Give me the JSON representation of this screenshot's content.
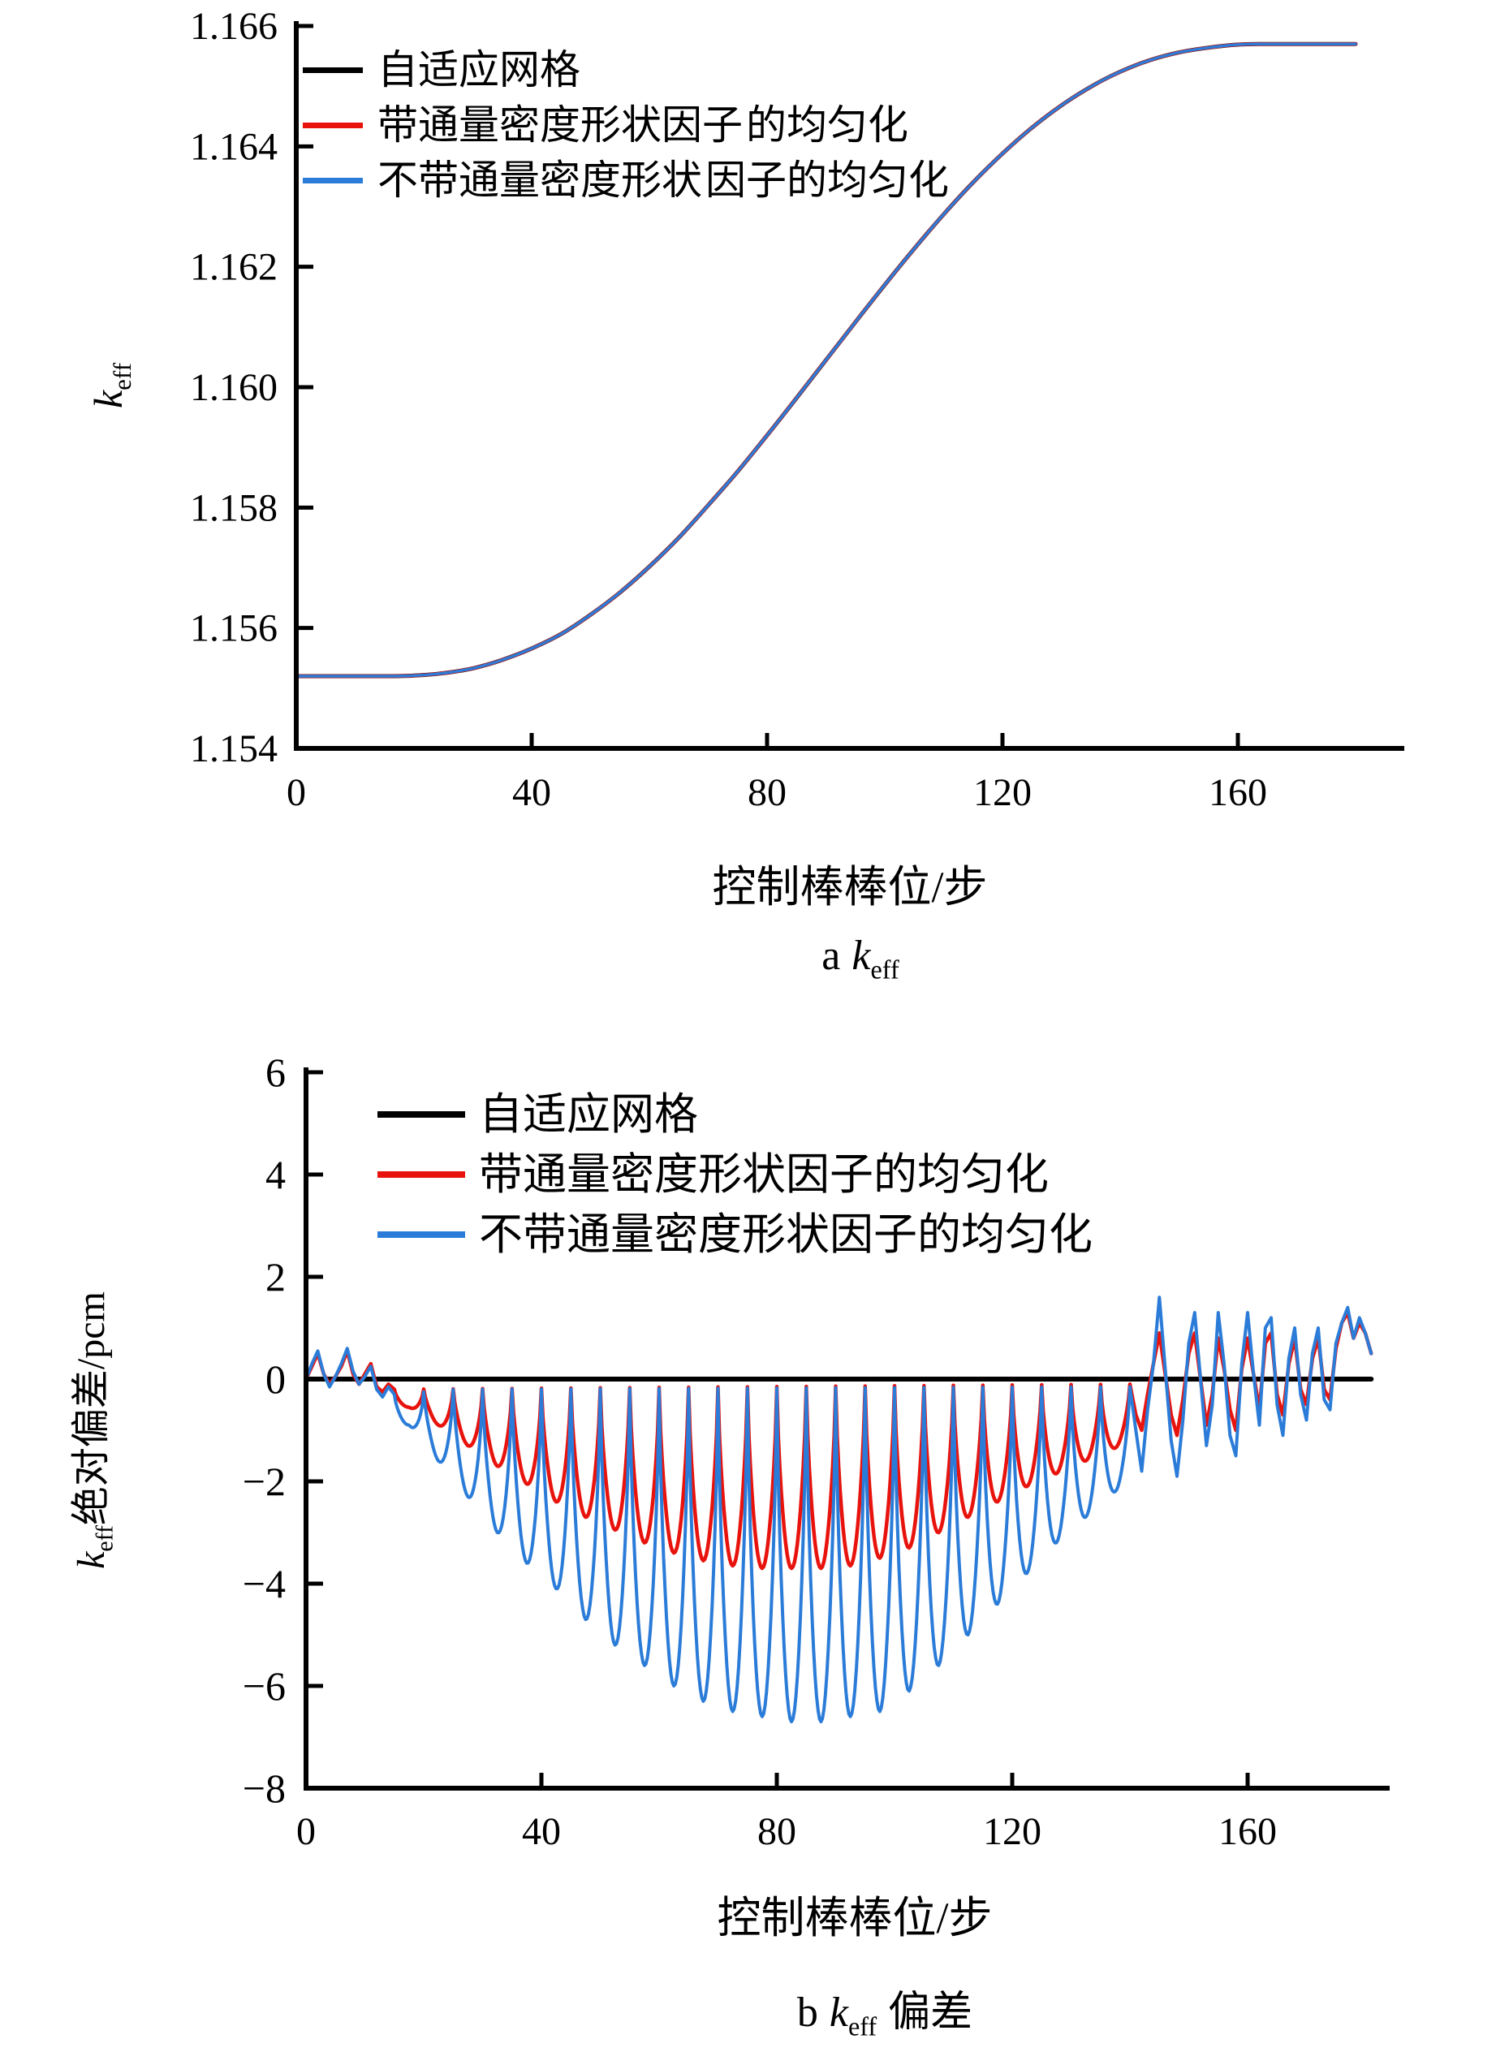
{
  "figure": {
    "background": "#ffffff",
    "colors": {
      "adaptive_mesh": "#000000",
      "with_form_factor": "#e8130d",
      "without_form_factor": "#2b7cd8"
    },
    "panel_a": {
      "ylabel_main": "k",
      "ylabel_sub": "eff",
      "xlabel": "控制棒棒位/步",
      "caption_prefix": "a",
      "caption_main": "k",
      "caption_sub": "eff",
      "legend": [
        {
          "line1": "自适应网格",
          "line2": "",
          "color": "#000000"
        },
        {
          "line1": "带通量密度形状因子",
          "line2": "的均匀化",
          "color": "#e8130d"
        },
        {
          "line1": "不带通量密度形状",
          "line2": "因子的均匀化",
          "color": "#2b7cd8"
        }
      ]
    },
    "panel_b": {
      "ylabel_main": "k",
      "ylabel_sub": "eff",
      "ylabel_rest": "绝对偏差/pcm",
      "xlabel": "控制棒棒位/步",
      "caption_prefix": "b",
      "caption_main": "k",
      "caption_sub": "eff",
      "caption_suffix": "偏差",
      "legend": [
        {
          "line1": "自适应网格",
          "color": "#000000"
        },
        {
          "line1": "带通量密度形状因子的均匀化",
          "color": "#e8130d"
        },
        {
          "line1": "不带通量密度形状因子的均匀化",
          "color": "#2b7cd8"
        }
      ]
    }
  },
  "chart_data": [
    {
      "id": "a",
      "type": "line",
      "title": "a k_eff",
      "xlabel": "控制棒棒位/步",
      "ylabel": "k_eff",
      "xlim": [
        0,
        188
      ],
      "ylim": [
        1.154,
        1.166
      ],
      "grid": false,
      "legend_position": "upper-left",
      "xtick_values": [
        0,
        40,
        80,
        120,
        160
      ],
      "xtick_labels": [
        "0",
        "40",
        "80",
        "120",
        "160"
      ],
      "ytick_values": [
        1.154,
        1.156,
        1.158,
        1.16,
        1.162,
        1.164,
        1.166
      ],
      "ytick_labels": [
        "1.154",
        "1.156",
        "1.158",
        "1.160",
        "1.162",
        "1.164",
        "1.166"
      ],
      "x": [
        0,
        5,
        10,
        15,
        20,
        25,
        30,
        35,
        40,
        45,
        50,
        55,
        60,
        65,
        70,
        75,
        80,
        85,
        90,
        95,
        100,
        105,
        110,
        115,
        120,
        125,
        130,
        135,
        140,
        145,
        150,
        155,
        160,
        165,
        170,
        175,
        180
      ],
      "shared_y": [
        1.1552,
        1.1552,
        1.1552,
        1.1552,
        1.15521,
        1.15525,
        1.15533,
        1.15547,
        1.15566,
        1.1559,
        1.15622,
        1.15659,
        1.15702,
        1.1575,
        1.15804,
        1.1586,
        1.1592,
        1.15982,
        1.16045,
        1.16108,
        1.1617,
        1.1623,
        1.16287,
        1.1634,
        1.16388,
        1.16431,
        1.16468,
        1.16499,
        1.16524,
        1.16543,
        1.16556,
        1.16564,
        1.16569,
        1.1657,
        1.1657,
        1.1657,
        1.1657
      ],
      "series": [
        {
          "name": "自适应网格",
          "color": "#000000",
          "width": 5,
          "uses_shared_y": true
        },
        {
          "name": "带通量密度形状因子的均匀化",
          "color": "#e8130d",
          "width": 4.5,
          "uses_shared_y": true
        },
        {
          "name": "不带通量密度形状因子的均匀化",
          "color": "#2b7cd8",
          "width": 3.5,
          "uses_shared_y": true
        }
      ]
    },
    {
      "id": "b",
      "type": "line",
      "title": "b k_eff 偏差",
      "xlabel": "控制棒棒位/步",
      "ylabel": "k_eff绝对偏差/pcm",
      "xlim": [
        0,
        188
      ],
      "ylim": [
        -8,
        6
      ],
      "grid": false,
      "legend_position": "upper-left",
      "xtick_values": [
        0,
        40,
        80,
        120,
        160
      ],
      "xtick_labels": [
        "0",
        "40",
        "80",
        "120",
        "160"
      ],
      "ytick_values": [
        6,
        4,
        2,
        0,
        -2,
        -4,
        -6,
        -8
      ],
      "ytick_labels": [
        "6",
        "4",
        "2",
        "0",
        "−2",
        "−4",
        "−6",
        "−8"
      ],
      "series": [
        {
          "name": "自适应网格",
          "color": "#000000",
          "width": 6,
          "points": [
            [
              0,
              0
            ],
            [
              181,
              0
            ]
          ]
        },
        {
          "name": "带通量密度形状因子的均匀化",
          "color": "#e8130d",
          "width": 4.5,
          "early": [
            [
              0,
              0
            ],
            [
              1,
              0.25
            ],
            [
              2,
              0.5
            ],
            [
              3,
              0.1
            ],
            [
              4,
              -0.1
            ],
            [
              5,
              0.05
            ],
            [
              6,
              0.25
            ],
            [
              7,
              0.55
            ],
            [
              8,
              0.1
            ],
            [
              9,
              -0.1
            ],
            [
              10,
              0.1
            ],
            [
              11,
              0.3
            ],
            [
              12,
              -0.15
            ],
            [
              13,
              -0.25
            ],
            [
              14,
              -0.1
            ]
          ],
          "periodic": {
            "start": 15,
            "end": 140,
            "period": 5,
            "sharpness": 0.7,
            "tops": [
              [
                15,
                -0.2
              ],
              [
                140,
                -0.1
              ]
            ],
            "mins": [
              [
                17.5,
                -0.55
              ],
              [
                22.5,
                -0.9
              ],
              [
                27.5,
                -1.3
              ],
              [
                32.5,
                -1.7
              ],
              [
                37.5,
                -2.05
              ],
              [
                42.5,
                -2.4
              ],
              [
                47.5,
                -2.7
              ],
              [
                52.5,
                -2.95
              ],
              [
                57.5,
                -3.2
              ],
              [
                62.5,
                -3.4
              ],
              [
                67.5,
                -3.55
              ],
              [
                72.5,
                -3.65
              ],
              [
                77.5,
                -3.7
              ],
              [
                82.5,
                -3.7
              ],
              [
                87.5,
                -3.7
              ],
              [
                92.5,
                -3.65
              ],
              [
                97.5,
                -3.5
              ],
              [
                102.5,
                -3.3
              ],
              [
                107.5,
                -3.0
              ],
              [
                112.5,
                -2.7
              ],
              [
                117.5,
                -2.4
              ],
              [
                122.5,
                -2.1
              ],
              [
                127.5,
                -1.85
              ],
              [
                132.5,
                -1.6
              ],
              [
                137.5,
                -1.35
              ],
              [
                140,
                -1.2
              ]
            ]
          },
          "late": [
            [
              141,
              -0.7
            ],
            [
              142,
              -1.0
            ],
            [
              143,
              -0.3
            ],
            [
              144,
              0.3
            ],
            [
              145,
              0.9
            ],
            [
              146,
              0.1
            ],
            [
              147,
              -0.7
            ],
            [
              148,
              -1.1
            ],
            [
              149,
              -0.4
            ],
            [
              150,
              0.5
            ],
            [
              151,
              0.9
            ],
            [
              152,
              0.0
            ],
            [
              153,
              -0.9
            ],
            [
              154,
              -0.3
            ],
            [
              155,
              0.8
            ],
            [
              156,
              0.2
            ],
            [
              157,
              -0.6
            ],
            [
              158,
              -1.0
            ],
            [
              159,
              0.2
            ],
            [
              160,
              0.8
            ],
            [
              161,
              0.1
            ],
            [
              162,
              -0.6
            ],
            [
              163,
              0.7
            ],
            [
              164,
              0.9
            ],
            [
              165,
              -0.3
            ],
            [
              166,
              -0.7
            ],
            [
              167,
              0.3
            ],
            [
              168,
              0.8
            ],
            [
              169,
              -0.2
            ],
            [
              170,
              -0.5
            ],
            [
              171,
              0.4
            ],
            [
              172,
              0.8
            ],
            [
              173,
              -0.2
            ],
            [
              174,
              -0.4
            ],
            [
              175,
              0.6
            ],
            [
              176,
              1.1
            ],
            [
              177,
              1.3
            ],
            [
              178,
              0.8
            ],
            [
              179,
              1.1
            ],
            [
              180,
              0.9
            ],
            [
              181,
              0.5
            ]
          ]
        },
        {
          "name": "不带通量密度形状因子的均匀化",
          "color": "#2b7cd8",
          "width": 4,
          "early": [
            [
              0,
              0
            ],
            [
              1,
              0.3
            ],
            [
              2,
              0.55
            ],
            [
              3,
              0.1
            ],
            [
              4,
              -0.15
            ],
            [
              5,
              0.05
            ],
            [
              6,
              0.3
            ],
            [
              7,
              0.6
            ],
            [
              8,
              0.15
            ],
            [
              9,
              -0.1
            ],
            [
              10,
              0.05
            ],
            [
              11,
              0.25
            ],
            [
              12,
              -0.2
            ],
            [
              13,
              -0.35
            ],
            [
              14,
              -0.15
            ]
          ],
          "periodic": {
            "start": 15,
            "end": 140,
            "period": 5,
            "sharpness": 0.7,
            "tops": [
              [
                15,
                -0.3
              ],
              [
                25,
                -0.2
              ],
              [
                140,
                -0.15
              ]
            ],
            "mins": [
              [
                17.5,
                -0.9
              ],
              [
                22.5,
                -1.6
              ],
              [
                27.5,
                -2.3
              ],
              [
                32.5,
                -3.0
              ],
              [
                37.5,
                -3.6
              ],
              [
                42.5,
                -4.1
              ],
              [
                47.5,
                -4.7
              ],
              [
                52.5,
                -5.2
              ],
              [
                57.5,
                -5.6
              ],
              [
                62.5,
                -6.0
              ],
              [
                67.5,
                -6.3
              ],
              [
                72.5,
                -6.5
              ],
              [
                77.5,
                -6.6
              ],
              [
                82.5,
                -6.7
              ],
              [
                87.5,
                -6.7
              ],
              [
                92.5,
                -6.6
              ],
              [
                97.5,
                -6.5
              ],
              [
                102.5,
                -6.1
              ],
              [
                107.5,
                -5.6
              ],
              [
                112.5,
                -5.0
              ],
              [
                117.5,
                -4.4
              ],
              [
                122.5,
                -3.8
              ],
              [
                127.5,
                -3.2
              ],
              [
                132.5,
                -2.7
              ],
              [
                137.5,
                -2.2
              ],
              [
                140,
                -2.0
              ]
            ]
          },
          "late": [
            [
              141,
              -1.0
            ],
            [
              142,
              -1.8
            ],
            [
              143,
              -0.6
            ],
            [
              144,
              0.3
            ],
            [
              145,
              1.6
            ],
            [
              146,
              0.2
            ],
            [
              147,
              -1.2
            ],
            [
              148,
              -1.9
            ],
            [
              149,
              -0.8
            ],
            [
              150,
              0.7
            ],
            [
              151,
              1.3
            ],
            [
              152,
              0.0
            ],
            [
              153,
              -1.3
            ],
            [
              154,
              -0.5
            ],
            [
              155,
              1.3
            ],
            [
              156,
              0.3
            ],
            [
              157,
              -1.1
            ],
            [
              158,
              -1.5
            ],
            [
              159,
              0.3
            ],
            [
              160,
              1.3
            ],
            [
              161,
              0.1
            ],
            [
              162,
              -0.9
            ],
            [
              163,
              1.0
            ],
            [
              164,
              1.2
            ],
            [
              165,
              -0.5
            ],
            [
              166,
              -1.1
            ],
            [
              167,
              0.4
            ],
            [
              168,
              1.0
            ],
            [
              169,
              -0.3
            ],
            [
              170,
              -0.8
            ],
            [
              171,
              0.5
            ],
            [
              172,
              1.0
            ],
            [
              173,
              -0.4
            ],
            [
              174,
              -0.6
            ],
            [
              175,
              0.7
            ],
            [
              176,
              1.1
            ],
            [
              177,
              1.4
            ],
            [
              178,
              0.8
            ],
            [
              179,
              1.2
            ],
            [
              180,
              0.9
            ],
            [
              181,
              0.5
            ]
          ]
        }
      ]
    }
  ]
}
